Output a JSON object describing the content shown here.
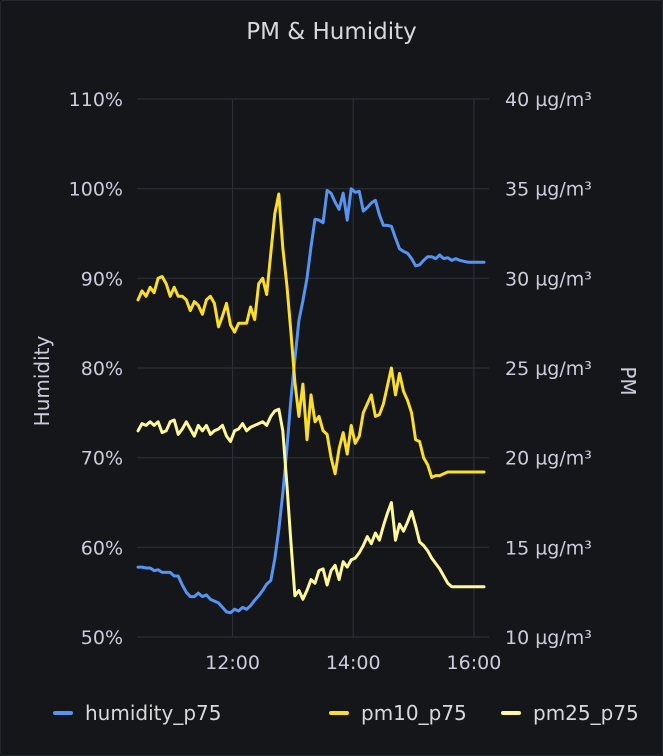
{
  "panel": {
    "title": "PM & Humidity"
  },
  "chart_data": {
    "type": "line",
    "title": "PM & Humidity",
    "x_ticks": [
      "12:00",
      "14:00",
      "16:00"
    ],
    "x_domain": [
      "10:25",
      "16:15"
    ],
    "left_axis": {
      "label": "Humidity",
      "range": [
        50,
        110
      ],
      "ticks": [
        "50%",
        "60%",
        "70%",
        "80%",
        "90%",
        "100%",
        "110%"
      ]
    },
    "right_axis": {
      "label": "PM",
      "range": [
        10,
        40
      ],
      "ticks": [
        "10 µg/m³",
        "15 µg/m³",
        "20 µg/m³",
        "25 µg/m³",
        "30 µg/m³",
        "35 µg/m³",
        "40 µg/m³"
      ]
    },
    "grid": true,
    "legend_position": "bottom",
    "series": [
      {
        "name": "humidity_p75",
        "axis": "left",
        "color": "#5794f2",
        "x": [
          "10:26",
          "10:30",
          "10:34",
          "10:38",
          "10:42",
          "10:46",
          "10:50",
          "10:54",
          "10:58",
          "11:02",
          "11:06",
          "11:10",
          "11:14",
          "11:18",
          "11:22",
          "11:26",
          "11:30",
          "11:34",
          "11:38",
          "11:42",
          "11:46",
          "11:50",
          "11:54",
          "11:58",
          "12:02",
          "12:06",
          "12:10",
          "12:14",
          "12:18",
          "12:22",
          "12:26",
          "12:30",
          "12:34",
          "12:38",
          "12:42",
          "12:46",
          "12:50",
          "12:54",
          "12:58",
          "13:02",
          "13:06",
          "13:10",
          "13:14",
          "13:18",
          "13:22",
          "13:26",
          "13:30",
          "13:34",
          "13:38",
          "13:42",
          "13:46",
          "13:50",
          "13:54",
          "13:58",
          "14:02",
          "14:06",
          "14:10",
          "14:14",
          "14:18",
          "14:22",
          "14:26",
          "14:30",
          "14:34",
          "14:38",
          "14:42",
          "14:46",
          "14:50",
          "14:54",
          "14:58",
          "15:02",
          "15:06",
          "15:10",
          "15:14",
          "15:18",
          "15:22",
          "15:26",
          "15:30",
          "15:34",
          "15:38",
          "15:42",
          "15:46",
          "15:50",
          "15:54",
          "15:58",
          "16:02",
          "16:06",
          "16:10"
        ],
        "values": [
          57.8,
          57.8,
          57.7,
          57.7,
          57.4,
          57.5,
          57.2,
          57.2,
          57.2,
          56.8,
          56.8,
          55.8,
          55,
          54.5,
          54.5,
          54.9,
          54.5,
          54.7,
          54.2,
          54,
          53.8,
          53.3,
          52.8,
          52.7,
          53.1,
          52.9,
          53.3,
          53.1,
          53.5,
          54.1,
          54.6,
          55.2,
          55.9,
          56.3,
          58.7,
          62,
          66,
          71,
          76.5,
          81,
          85.3,
          87.5,
          90,
          93.5,
          96.6,
          96.5,
          96.2,
          99.8,
          99.5,
          98.5,
          97.7,
          99.5,
          96.5,
          100,
          99.6,
          99.7,
          97.5,
          97.9,
          98.4,
          98.7,
          97.1,
          95.9,
          95.9,
          95.8,
          94.5,
          93.3,
          93,
          92.8,
          92.2,
          91.4,
          91.5,
          92,
          92.4,
          92.4,
          92.2,
          92.6,
          92.2,
          92.3,
          92,
          92.2,
          92,
          91.9,
          91.8,
          91.8,
          91.8,
          91.8,
          91.8
        ]
      },
      {
        "name": "pm10_p75",
        "axis": "right",
        "color": "#fade2a",
        "x": [
          "10:26",
          "10:30",
          "10:34",
          "10:38",
          "10:42",
          "10:46",
          "10:50",
          "10:54",
          "10:58",
          "11:02",
          "11:06",
          "11:10",
          "11:14",
          "11:18",
          "11:22",
          "11:26",
          "11:30",
          "11:34",
          "11:38",
          "11:42",
          "11:46",
          "11:50",
          "11:54",
          "11:58",
          "12:02",
          "12:06",
          "12:10",
          "12:14",
          "12:18",
          "12:22",
          "12:26",
          "12:30",
          "12:34",
          "12:38",
          "12:42",
          "12:46",
          "12:50",
          "12:54",
          "12:58",
          "13:02",
          "13:06",
          "13:10",
          "13:14",
          "13:18",
          "13:22",
          "13:26",
          "13:30",
          "13:34",
          "13:38",
          "13:42",
          "13:46",
          "13:50",
          "13:54",
          "13:58",
          "14:02",
          "14:06",
          "14:10",
          "14:14",
          "14:18",
          "14:22",
          "14:26",
          "14:30",
          "14:34",
          "14:38",
          "14:42",
          "14:46",
          "14:50",
          "14:54",
          "14:58",
          "15:02",
          "15:06",
          "15:10",
          "15:14",
          "15:18",
          "15:22",
          "15:26",
          "15:30",
          "15:34",
          "15:38",
          "15:42",
          "15:46",
          "15:50",
          "15:54",
          "15:58",
          "16:02",
          "16:06",
          "16:10"
        ],
        "values": [
          28.8,
          29.3,
          29,
          29.5,
          29.2,
          30,
          30.1,
          29.7,
          29,
          29.5,
          29,
          29,
          28.8,
          28.2,
          28.7,
          28.5,
          28,
          28.8,
          29,
          28.6,
          27.3,
          27.9,
          28.6,
          27.4,
          27,
          27.5,
          27.5,
          27.5,
          28.4,
          27.7,
          29.7,
          30,
          29.1,
          31.4,
          33.6,
          34.7,
          31.7,
          29.6,
          27,
          24.2,
          22.3,
          24.1,
          21,
          23.5,
          22,
          22.3,
          21.5,
          21.3,
          20,
          19.1,
          20.5,
          21.4,
          20.2,
          21.8,
          20.8,
          21.2,
          22.5,
          23,
          23.5,
          22.3,
          22.4,
          23,
          24,
          25,
          23.5,
          24.7,
          23.7,
          23.2,
          22.5,
          21,
          20.9,
          20,
          19.6,
          18.9,
          19,
          19,
          19.1,
          19.2,
          19.2,
          19.2,
          19.2,
          19.2,
          19.2,
          19.2,
          19.2,
          19.2,
          19.2
        ]
      },
      {
        "name": "pm25_p75",
        "axis": "right",
        "color": "#fff899",
        "x": [
          "10:26",
          "10:30",
          "10:34",
          "10:38",
          "10:42",
          "10:46",
          "10:50",
          "10:54",
          "10:58",
          "11:02",
          "11:06",
          "11:10",
          "11:14",
          "11:18",
          "11:22",
          "11:26",
          "11:30",
          "11:34",
          "11:38",
          "11:42",
          "11:46",
          "11:50",
          "11:54",
          "11:58",
          "12:02",
          "12:06",
          "12:10",
          "12:14",
          "12:18",
          "12:22",
          "12:26",
          "12:30",
          "12:34",
          "12:38",
          "12:42",
          "12:46",
          "12:50",
          "12:54",
          "12:58",
          "13:02",
          "13:06",
          "13:10",
          "13:14",
          "13:18",
          "13:22",
          "13:26",
          "13:30",
          "13:34",
          "13:38",
          "13:42",
          "13:46",
          "13:50",
          "13:54",
          "13:58",
          "14:02",
          "14:06",
          "14:10",
          "14:14",
          "14:18",
          "14:22",
          "14:26",
          "14:30",
          "14:34",
          "14:38",
          "14:42",
          "14:46",
          "14:50",
          "14:54",
          "14:58",
          "15:02",
          "15:06",
          "15:10",
          "15:14",
          "15:18",
          "15:22",
          "15:26",
          "15:30",
          "15:34",
          "15:38",
          "15:42",
          "15:46",
          "15:50",
          "15:54",
          "15:58",
          "16:02",
          "16:06",
          "16:10"
        ],
        "values": [
          21.5,
          21.9,
          21.8,
          22,
          21.8,
          22,
          21.4,
          21.5,
          22,
          22.1,
          21.3,
          21.6,
          22,
          21.6,
          21.2,
          21.8,
          21.5,
          21.8,
          21.3,
          21.5,
          21.6,
          21.8,
          21.2,
          20.9,
          21.5,
          21.6,
          21.9,
          21.5,
          21.7,
          21.8,
          21.9,
          22,
          21.8,
          22.3,
          22.6,
          22.7,
          21.5,
          18.5,
          15.3,
          12.3,
          12.6,
          12.1,
          12.6,
          13.2,
          13,
          13.7,
          13.8,
          12.9,
          13.7,
          14,
          13.2,
          14.2,
          13.9,
          14.3,
          14.4,
          14.7,
          15.1,
          15.6,
          15.2,
          15.8,
          15.4,
          16.2,
          16.9,
          17.5,
          15.4,
          16.3,
          15.9,
          16.4,
          17,
          16.2,
          15.3,
          15.1,
          14.8,
          14.4,
          14.1,
          13.8,
          13.4,
          13,
          12.8,
          12.8,
          12.8,
          12.8,
          12.8,
          12.8,
          12.8,
          12.8,
          12.8
        ]
      }
    ]
  }
}
